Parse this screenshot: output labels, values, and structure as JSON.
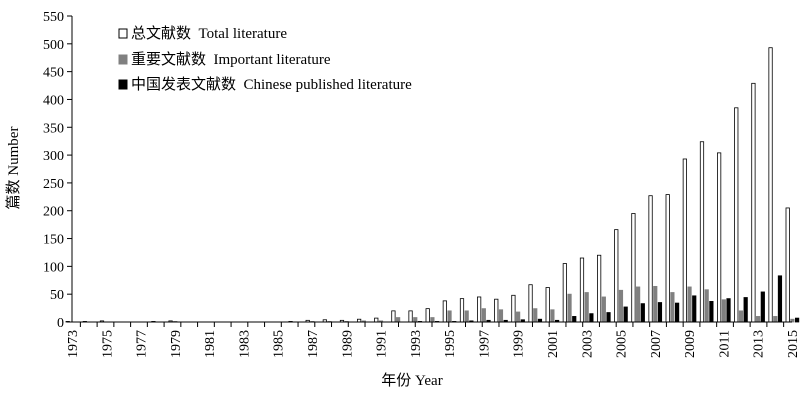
{
  "chart_data": {
    "type": "bar",
    "title": "",
    "xlabel": "年份 Year",
    "ylabel": "篇数 Number",
    "ylim": [
      0,
      550
    ],
    "yticks": [
      0,
      50,
      100,
      150,
      200,
      250,
      300,
      350,
      400,
      450,
      500,
      550
    ],
    "xtick_labels": [
      "1973",
      "1975",
      "1977",
      "1979",
      "1981",
      "1983",
      "1985",
      "1987",
      "1989",
      "1991",
      "1993",
      "1995",
      "1997",
      "1999",
      "2001",
      "2003",
      "2005",
      "2007",
      "2009",
      "2011",
      "2013",
      "2015"
    ],
    "grid": false,
    "legend_position": "top-left",
    "categories": [
      "1973",
      "1974",
      "1975",
      "1976",
      "1977",
      "1978",
      "1979",
      "1980",
      "1981",
      "1982",
      "1983",
      "1984",
      "1985",
      "1986",
      "1987",
      "1988",
      "1989",
      "1990",
      "1991",
      "1992",
      "1993",
      "1994",
      "1995",
      "1996",
      "1997",
      "1998",
      "1999",
      "2000",
      "2001",
      "2002",
      "2003",
      "2004",
      "2005",
      "2006",
      "2007",
      "2008",
      "2009",
      "2010",
      "2011",
      "2012",
      "2013",
      "2014",
      "2015"
    ],
    "series": [
      {
        "name": "总文献数  Total literature",
        "style": "white-outlined",
        "values": [
          1,
          1,
          2,
          0,
          0,
          1,
          2,
          0,
          0,
          0,
          0,
          0,
          0,
          1,
          3,
          4,
          3,
          5,
          7,
          20,
          20,
          24,
          38,
          42,
          45,
          41,
          48,
          67,
          62,
          105,
          115,
          120,
          166,
          195,
          227,
          229,
          293,
          324,
          304,
          385,
          429,
          493,
          205
        ]
      },
      {
        "name": "重要文献数  Important literature",
        "style": "gray",
        "values": [
          0,
          0,
          0,
          0,
          0,
          0,
          1,
          0,
          0,
          0,
          0,
          0,
          0,
          0,
          1,
          1,
          1,
          2,
          2,
          8,
          8,
          8,
          20,
          20,
          24,
          22,
          18,
          24,
          22,
          50,
          53,
          45,
          57,
          63,
          64,
          53,
          63,
          58,
          40,
          20,
          10,
          10,
          5
        ]
      },
      {
        "name": "中国发表文献数  Chinese published literature",
        "style": "black",
        "values": [
          0,
          0,
          0,
          0,
          0,
          0,
          0,
          0,
          0,
          0,
          0,
          0,
          0,
          0,
          0,
          0,
          0,
          0,
          0,
          0,
          1,
          1,
          1,
          2,
          3,
          3,
          4,
          5,
          3,
          10,
          15,
          17,
          27,
          33,
          35,
          34,
          47,
          37,
          42,
          44,
          54,
          83,
          7
        ]
      }
    ],
    "colors": {
      "total": "#ffffff",
      "important": "#808080",
      "chinese": "#000000",
      "outline": "#000000"
    }
  }
}
